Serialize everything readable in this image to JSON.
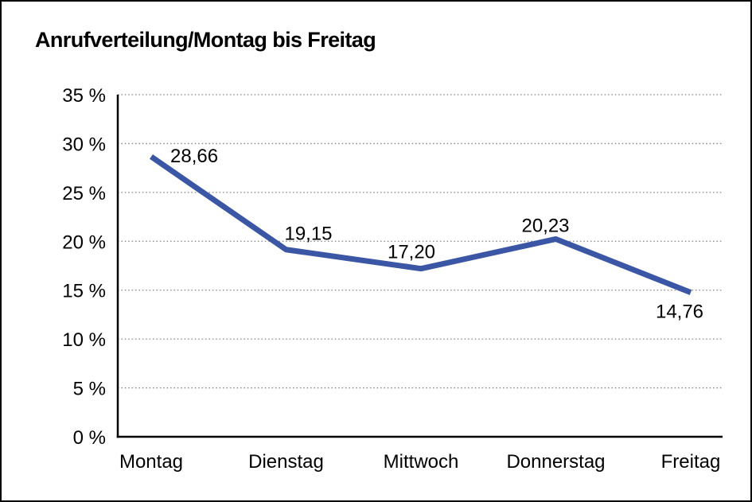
{
  "chart_data": {
    "type": "line",
    "title": "Anrufverteilung/Montag bis Freitag",
    "categories": [
      "Montag",
      "Dienstag",
      "Mittwoch",
      "Donnerstag",
      "Freitag"
    ],
    "series": [
      {
        "name": "Anrufverteilung",
        "values": [
          28.66,
          19.15,
          17.2,
          20.23,
          14.76
        ],
        "data_labels": [
          "28,66",
          "19,15",
          "17,20",
          "20,23",
          "14,76"
        ]
      }
    ],
    "xlabel": "",
    "ylabel": "",
    "ylim": [
      0,
      35
    ],
    "y_ticks": [
      {
        "value": 35,
        "label": "35 %"
      },
      {
        "value": 30,
        "label": "30 %"
      },
      {
        "value": 25,
        "label": "25 %"
      },
      {
        "value": 20,
        "label": "20 %"
      },
      {
        "value": 15,
        "label": "15 %"
      },
      {
        "value": 10,
        "label": "10 %"
      },
      {
        "value": 5,
        "label": "5 %"
      },
      {
        "value": 0,
        "label": "0 %"
      }
    ],
    "grid": "horizontal-dotted",
    "legend": "none",
    "colors": {
      "line": "#3B56A4",
      "axis": "#000000",
      "grid": "#878787",
      "text": "#000000",
      "background": "#FFFFFF"
    }
  }
}
